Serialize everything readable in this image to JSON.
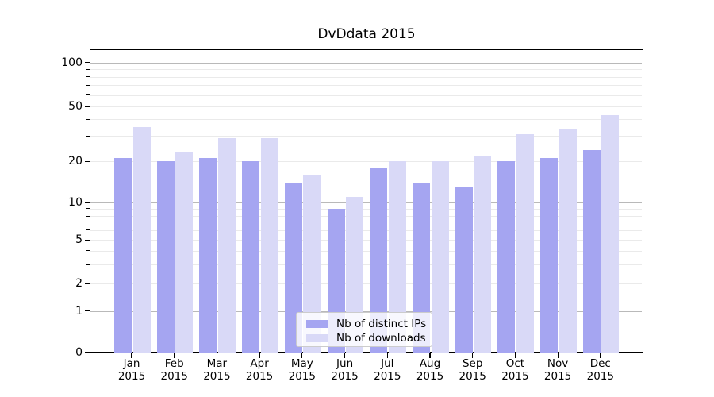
{
  "title": "DvDdata 2015",
  "legend": {
    "items": [
      {
        "label": "Nb of distinct IPs",
        "color": "#a5a5f1"
      },
      {
        "label": "Nb of downloads",
        "color": "#d9d9f7"
      }
    ]
  },
  "colors": {
    "bar_dark": "#a5a5f1",
    "bar_light": "#d9d9f7",
    "grid_major": "#b9b9b9",
    "grid_minor": "#eaeaea",
    "spine": "#000000"
  },
  "chart_data": {
    "type": "bar",
    "title": "DvDdata 2015",
    "xlabel": "",
    "ylabel": "",
    "yscale": "symlog",
    "grid": true,
    "legend_position": "lower center",
    "categories": [
      {
        "month": "Jan",
        "year": "2015"
      },
      {
        "month": "Feb",
        "year": "2015"
      },
      {
        "month": "Mar",
        "year": "2015"
      },
      {
        "month": "Apr",
        "year": "2015"
      },
      {
        "month": "May",
        "year": "2015"
      },
      {
        "month": "Jun",
        "year": "2015"
      },
      {
        "month": "Jul",
        "year": "2015"
      },
      {
        "month": "Aug",
        "year": "2015"
      },
      {
        "month": "Sep",
        "year": "2015"
      },
      {
        "month": "Oct",
        "year": "2015"
      },
      {
        "month": "Nov",
        "year": "2015"
      },
      {
        "month": "Dec",
        "year": "2015"
      }
    ],
    "series": [
      {
        "name": "Nb of distinct IPs",
        "color": "#a5a5f1",
        "values": [
          21,
          20,
          21,
          20,
          14,
          9,
          18,
          14,
          13,
          20,
          21,
          24
        ]
      },
      {
        "name": "Nb of downloads",
        "color": "#d9d9f7",
        "values": [
          35,
          23,
          29,
          29,
          16,
          11,
          20,
          20,
          22,
          31,
          34,
          43
        ]
      }
    ],
    "y_tick_labels": [
      100,
      50,
      20,
      10,
      5,
      2,
      1,
      0
    ],
    "y_minor_ticks": [
      3,
      4,
      6,
      7,
      8,
      9,
      30,
      40,
      60,
      70,
      80,
      90
    ],
    "ylim": [
      0,
      123
    ]
  }
}
